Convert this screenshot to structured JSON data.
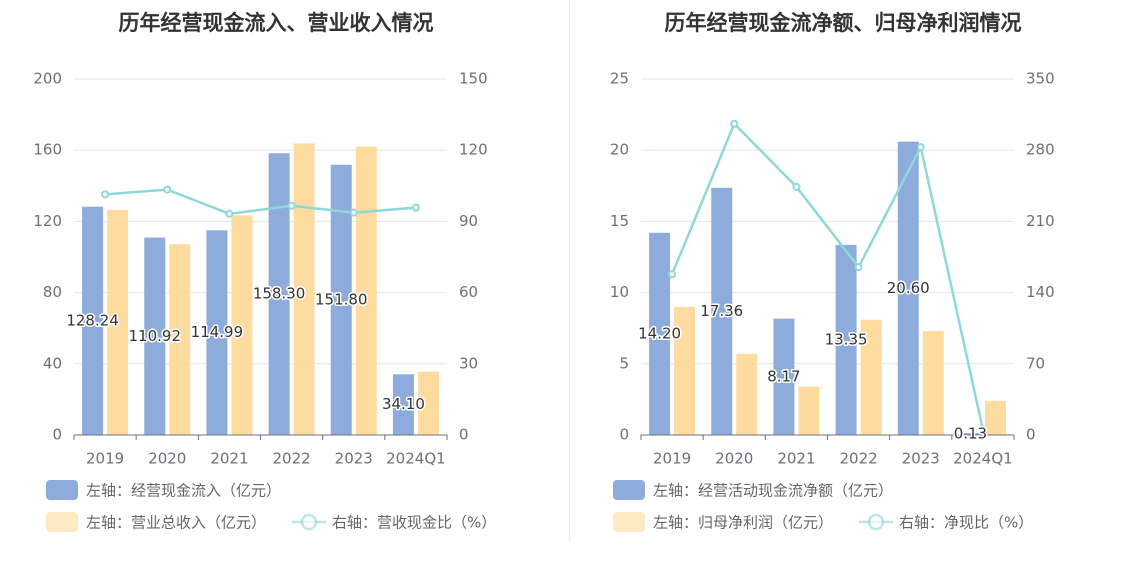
{
  "chart_data": [
    {
      "type": "bar",
      "title": "历年经营现金流入、营业收入情况",
      "categories": [
        "2019",
        "2020",
        "2021",
        "2022",
        "2023",
        "2024Q1"
      ],
      "y_left": {
        "ticks": [
          "0",
          "40",
          "80",
          "120",
          "160",
          "200"
        ],
        "lim": [
          0,
          200
        ]
      },
      "y_right": {
        "ticks": [
          "0",
          "30",
          "60",
          "90",
          "120",
          "150"
        ],
        "lim": [
          0,
          150
        ]
      },
      "series": [
        {
          "name": "左轴：经营现金流入（亿元）",
          "kind": "bar",
          "axis": "left",
          "color": "#8eacdb",
          "values": [
            128.24,
            110.92,
            114.99,
            158.3,
            151.8,
            34.1
          ],
          "labels": [
            "128.24",
            "110.92",
            "114.99",
            "158.30",
            "151.80",
            "34.10"
          ]
        },
        {
          "name": "左轴：营业总收入（亿元）",
          "kind": "bar",
          "axis": "left",
          "color": "#fedb9f",
          "values": [
            126.5,
            107.2,
            123.4,
            163.8,
            162.0,
            35.6
          ]
        },
        {
          "name": "右轴：营收现金比（%）",
          "kind": "line",
          "axis": "right",
          "color": "#8fd8d9",
          "values": [
            101.4,
            103.4,
            93.2,
            96.6,
            93.7,
            95.8
          ]
        }
      ],
      "legend": "bottom-left",
      "grid": true
    },
    {
      "type": "bar",
      "title": "历年经营现金流净额、归母净利润情况",
      "categories": [
        "2019",
        "2020",
        "2021",
        "2022",
        "2023",
        "2024Q1"
      ],
      "y_left": {
        "ticks": [
          "0",
          "5",
          "10",
          "15",
          "20",
          "25"
        ],
        "lim": [
          0,
          25
        ]
      },
      "y_right": {
        "ticks": [
          "0",
          "70",
          "140",
          "210",
          "280",
          "350"
        ],
        "lim": [
          0,
          350
        ]
      },
      "series": [
        {
          "name": "左轴：经营活动现金流净额（亿元）",
          "kind": "bar",
          "axis": "left",
          "color": "#8eacdb",
          "values": [
            14.2,
            17.36,
            8.17,
            13.35,
            20.6,
            0.13
          ],
          "labels": [
            "14.20",
            "17.36",
            "8.17",
            "13.35",
            "20.60",
            "0.13"
          ]
        },
        {
          "name": "左轴：归母净利润（亿元）",
          "kind": "bar",
          "axis": "left",
          "color": "#fedb9f",
          "values": [
            9.0,
            5.7,
            3.4,
            8.1,
            7.3,
            2.4
          ]
        },
        {
          "name": "右轴：净现比（%）",
          "kind": "line",
          "axis": "right",
          "color": "#8fd8d9",
          "values": [
            158,
            306,
            244,
            165,
            283,
            5
          ]
        }
      ],
      "legend": "bottom-left",
      "grid": true
    }
  ]
}
